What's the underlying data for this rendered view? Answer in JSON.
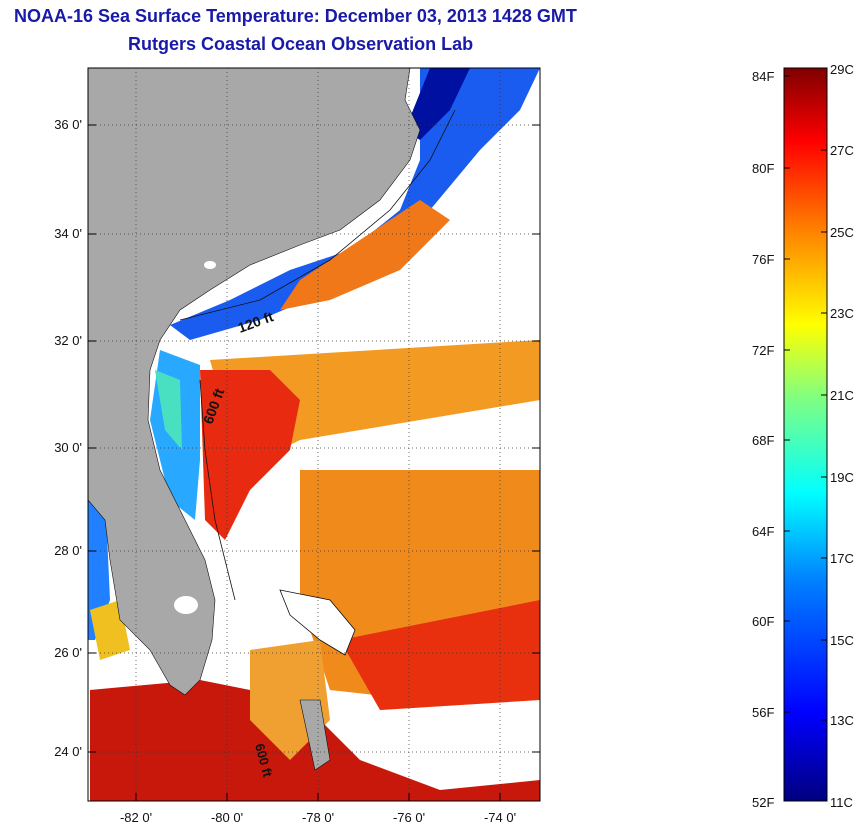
{
  "title": {
    "line1": "NOAA-16 Sea Surface Temperature:  December 03, 2013 1428 GMT",
    "line2": "Rutgers Coastal Ocean Observation Lab"
  },
  "map": {
    "lat_labels": [
      "36 0'",
      "34 0'",
      "32 0'",
      "30 0'",
      "28 0'",
      "26 0'",
      "24 0'"
    ],
    "lon_labels": [
      "-82 0'",
      "-80 0'",
      "-78 0'",
      "-76 0'",
      "-74 0'"
    ],
    "isobath_labels": [
      "120 ft",
      "600 ft",
      "600 ft"
    ],
    "land_color": "#a8a8a8",
    "cloud_color": "#ffffff"
  },
  "colorbar": {
    "fahrenheit_labels": [
      "84F",
      "80F",
      "76F",
      "72F",
      "68F",
      "64F",
      "60F",
      "56F",
      "52F"
    ],
    "celsius_labels": [
      "29C",
      "27C",
      "25C",
      "23C",
      "21C",
      "19C",
      "17C",
      "15C",
      "13C",
      "11C"
    ],
    "colormap": [
      "#00007f",
      "#0000ff",
      "#0080ff",
      "#00ffff",
      "#80ff80",
      "#ffff00",
      "#ff8000",
      "#ff0000",
      "#7f0000"
    ]
  }
}
